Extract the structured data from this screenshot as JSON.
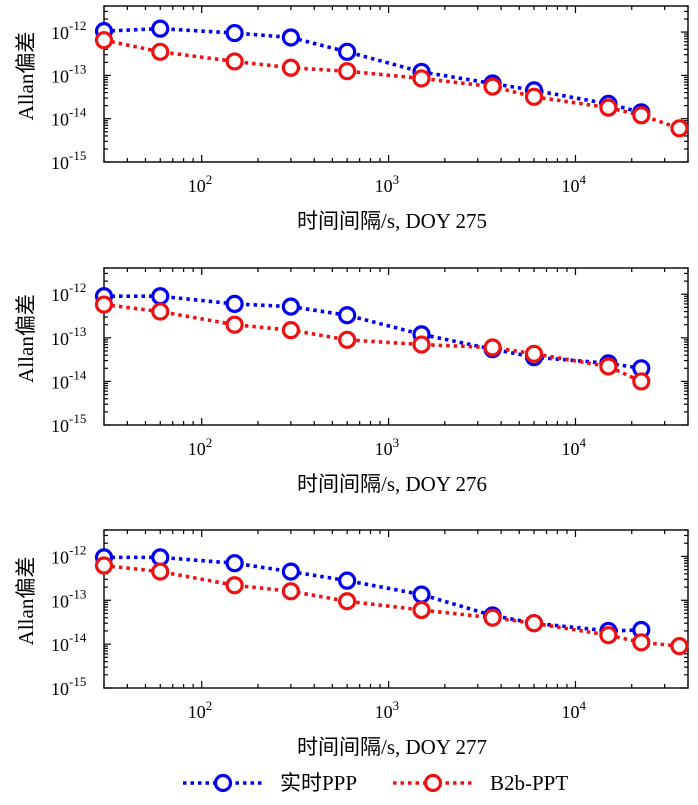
{
  "chart_data": [
    {
      "type": "line",
      "xscale": "log",
      "yscale": "log",
      "xlim": [
        30,
        40000
      ],
      "ylim": [
        1e-15,
        4e-12
      ],
      "xlabel": "时间间隔/s, DOY 275",
      "ylabel": "Allan偏差",
      "xticks": [
        {
          "value": 100,
          "base": "10",
          "exp": "2"
        },
        {
          "value": 1000,
          "base": "10",
          "exp": "3"
        },
        {
          "value": 10000,
          "base": "10",
          "exp": "4"
        }
      ],
      "yticks": [
        {
          "value": 1e-15,
          "base": "10",
          "exp": "-15"
        },
        {
          "value": 1e-14,
          "base": "10",
          "exp": "-14"
        },
        {
          "value": 1e-13,
          "base": "10",
          "exp": "-13"
        },
        {
          "value": 1e-12,
          "base": "10",
          "exp": "-12"
        }
      ],
      "series": [
        {
          "name": "实时PPP",
          "color": "#0000ee",
          "x": [
            30,
            60,
            150,
            300,
            600,
            1500,
            3600,
            6000,
            15000,
            22500
          ],
          "y": [
            1.05e-12,
            1.2e-12,
            9.5e-13,
            7.5e-13,
            3.5e-13,
            1.2e-13,
            6.5e-14,
            4.5e-14,
            2.2e-14,
            1.4e-14
          ]
        },
        {
          "name": "B2b-PPT",
          "color": "#ee1111",
          "x": [
            30,
            60,
            150,
            300,
            600,
            1500,
            3600,
            6000,
            15000,
            22500,
            36000
          ],
          "y": [
            6.5e-13,
            3.5e-13,
            2.1e-13,
            1.5e-13,
            1.25e-13,
            8.5e-14,
            5.5e-14,
            3.2e-14,
            1.8e-14,
            1.2e-14,
            6e-15
          ]
        }
      ]
    },
    {
      "type": "line",
      "xscale": "log",
      "yscale": "log",
      "xlim": [
        30,
        40000
      ],
      "ylim": [
        1e-15,
        4e-12
      ],
      "xlabel": "时间间隔/s, DOY 276",
      "ylabel": "Allan偏差",
      "xticks": [
        {
          "value": 100,
          "base": "10",
          "exp": "2"
        },
        {
          "value": 1000,
          "base": "10",
          "exp": "3"
        },
        {
          "value": 10000,
          "base": "10",
          "exp": "4"
        }
      ],
      "yticks": [
        {
          "value": 1e-15,
          "base": "10",
          "exp": "-15"
        },
        {
          "value": 1e-14,
          "base": "10",
          "exp": "-14"
        },
        {
          "value": 1e-13,
          "base": "10",
          "exp": "-13"
        },
        {
          "value": 1e-12,
          "base": "10",
          "exp": "-12"
        }
      ],
      "series": [
        {
          "name": "实时PPP",
          "color": "#0000ee",
          "x": [
            30,
            60,
            150,
            300,
            600,
            1500,
            3600,
            6000,
            15000,
            22500
          ],
          "y": [
            9e-13,
            9e-13,
            6e-13,
            5.2e-13,
            3.3e-13,
            1.2e-13,
            5.5e-14,
            3.6e-14,
            2.6e-14,
            2e-14
          ]
        },
        {
          "name": "B2b-PPT",
          "color": "#ee1111",
          "x": [
            30,
            60,
            150,
            300,
            600,
            1500,
            3600,
            6000,
            15000,
            22500
          ],
          "y": [
            5.8e-13,
            4e-13,
            2e-13,
            1.5e-13,
            9e-14,
            7e-14,
            6e-14,
            4.3e-14,
            2.2e-14,
            1e-14
          ]
        }
      ]
    },
    {
      "type": "line",
      "xscale": "log",
      "yscale": "log",
      "xlim": [
        30,
        40000
      ],
      "ylim": [
        1e-15,
        4e-12
      ],
      "xlabel": "时间间隔/s, DOY 277",
      "ylabel": "Allan偏差",
      "xticks": [
        {
          "value": 100,
          "base": "10",
          "exp": "2"
        },
        {
          "value": 1000,
          "base": "10",
          "exp": "3"
        },
        {
          "value": 10000,
          "base": "10",
          "exp": "4"
        }
      ],
      "yticks": [
        {
          "value": 1e-15,
          "base": "10",
          "exp": "-15"
        },
        {
          "value": 1e-14,
          "base": "10",
          "exp": "-14"
        },
        {
          "value": 1e-13,
          "base": "10",
          "exp": "-13"
        },
        {
          "value": 1e-12,
          "base": "10",
          "exp": "-12"
        }
      ],
      "series": [
        {
          "name": "实时PPP",
          "color": "#0000ee",
          "x": [
            30,
            60,
            150,
            300,
            600,
            1500,
            3600,
            6000,
            15000,
            22500
          ],
          "y": [
            9.5e-13,
            9.5e-13,
            7e-13,
            4.5e-13,
            2.8e-13,
            1.35e-13,
            4.5e-14,
            3e-14,
            2e-14,
            2.1e-14
          ]
        },
        {
          "name": "B2b-PPT",
          "color": "#ee1111",
          "x": [
            30,
            60,
            150,
            300,
            600,
            1500,
            3600,
            6000,
            15000,
            22500,
            36000
          ],
          "y": [
            6.2e-13,
            4.5e-13,
            2.2e-13,
            1.6e-13,
            9.5e-14,
            6e-14,
            4e-14,
            3e-14,
            1.6e-14,
            1.1e-14,
            9e-15
          ]
        }
      ]
    }
  ],
  "legend": {
    "placement": "bottom",
    "items": [
      {
        "label": "实时PPP",
        "color": "#0000ee"
      },
      {
        "label": "B2b-PPT",
        "color": "#ee1111"
      }
    ]
  }
}
